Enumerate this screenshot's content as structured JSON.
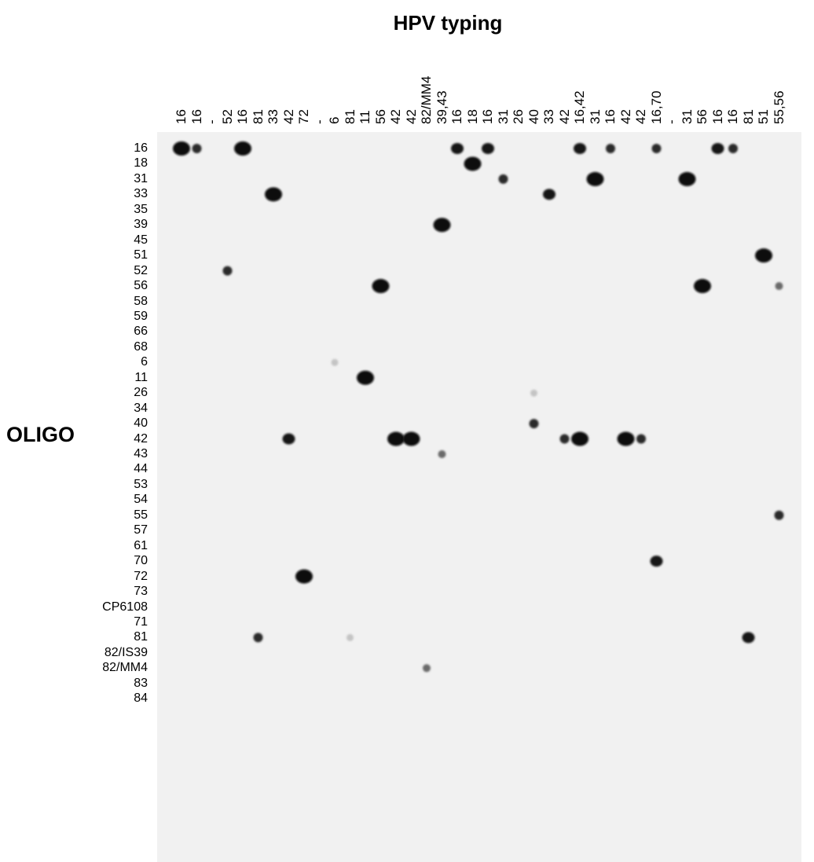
{
  "title": "HPV typing",
  "row_axis_label": "OLIGO",
  "columns": [
    "16",
    "16",
    "-",
    "52",
    "16",
    "81",
    "33",
    "42",
    "72",
    "-",
    "6",
    "81",
    "11",
    "56",
    "42",
    "42",
    "82/MM4",
    "39,43",
    "16",
    "18",
    "16",
    "31",
    "26",
    "40",
    "33",
    "42",
    "16,42",
    "31",
    "16",
    "42",
    "42",
    "16,70",
    "-",
    "31",
    "56",
    "16",
    "16",
    "81",
    "51",
    "55,56"
  ],
  "rows": [
    "16",
    "18",
    "31",
    "33",
    "35",
    "39",
    "45",
    "51",
    "52",
    "56",
    "58",
    "59",
    "66",
    "68",
    "6",
    "11",
    "26",
    "34",
    "40",
    "42",
    "43",
    "44",
    "53",
    "54",
    "55",
    "57",
    "61",
    "70",
    "72",
    "73",
    "CP6108",
    "71",
    "81",
    "82/IS39",
    "82/MM4",
    "83",
    "84"
  ],
  "spots": [
    {
      "row": 0,
      "col": 0,
      "intensity": "strong"
    },
    {
      "row": 0,
      "col": 1,
      "intensity": "weak"
    },
    {
      "row": 0,
      "col": 4,
      "intensity": "strong"
    },
    {
      "row": 0,
      "col": 18,
      "intensity": "medium"
    },
    {
      "row": 0,
      "col": 20,
      "intensity": "medium"
    },
    {
      "row": 0,
      "col": 26,
      "intensity": "medium"
    },
    {
      "row": 0,
      "col": 28,
      "intensity": "weak"
    },
    {
      "row": 0,
      "col": 31,
      "intensity": "weak"
    },
    {
      "row": 0,
      "col": 35,
      "intensity": "medium"
    },
    {
      "row": 0,
      "col": 36,
      "intensity": "weak"
    },
    {
      "row": 1,
      "col": 19,
      "intensity": "strong"
    },
    {
      "row": 2,
      "col": 21,
      "intensity": "weak"
    },
    {
      "row": 2,
      "col": 27,
      "intensity": "strong"
    },
    {
      "row": 2,
      "col": 33,
      "intensity": "strong"
    },
    {
      "row": 3,
      "col": 6,
      "intensity": "strong"
    },
    {
      "row": 3,
      "col": 24,
      "intensity": "medium"
    },
    {
      "row": 5,
      "col": 17,
      "intensity": "strong"
    },
    {
      "row": 7,
      "col": 38,
      "intensity": "strong"
    },
    {
      "row": 8,
      "col": 3,
      "intensity": "weak"
    },
    {
      "row": 9,
      "col": 13,
      "intensity": "strong"
    },
    {
      "row": 9,
      "col": 34,
      "intensity": "strong"
    },
    {
      "row": 9,
      "col": 39,
      "intensity": "faint"
    },
    {
      "row": 14,
      "col": 10,
      "intensity": "trace"
    },
    {
      "row": 15,
      "col": 12,
      "intensity": "strong"
    },
    {
      "row": 16,
      "col": 23,
      "intensity": "trace"
    },
    {
      "row": 18,
      "col": 23,
      "intensity": "weak"
    },
    {
      "row": 19,
      "col": 7,
      "intensity": "medium"
    },
    {
      "row": 19,
      "col": 14,
      "intensity": "strong"
    },
    {
      "row": 19,
      "col": 15,
      "intensity": "strong"
    },
    {
      "row": 19,
      "col": 25,
      "intensity": "weak"
    },
    {
      "row": 19,
      "col": 26,
      "intensity": "strong"
    },
    {
      "row": 19,
      "col": 29,
      "intensity": "strong"
    },
    {
      "row": 19,
      "col": 30,
      "intensity": "weak"
    },
    {
      "row": 20,
      "col": 17,
      "intensity": "faint"
    },
    {
      "row": 24,
      "col": 39,
      "intensity": "weak"
    },
    {
      "row": 27,
      "col": 31,
      "intensity": "medium"
    },
    {
      "row": 28,
      "col": 8,
      "intensity": "strong"
    },
    {
      "row": 32,
      "col": 5,
      "intensity": "weak"
    },
    {
      "row": 32,
      "col": 11,
      "intensity": "trace"
    },
    {
      "row": 32,
      "col": 37,
      "intensity": "medium"
    },
    {
      "row": 34,
      "col": 16,
      "intensity": "faint"
    }
  ]
}
